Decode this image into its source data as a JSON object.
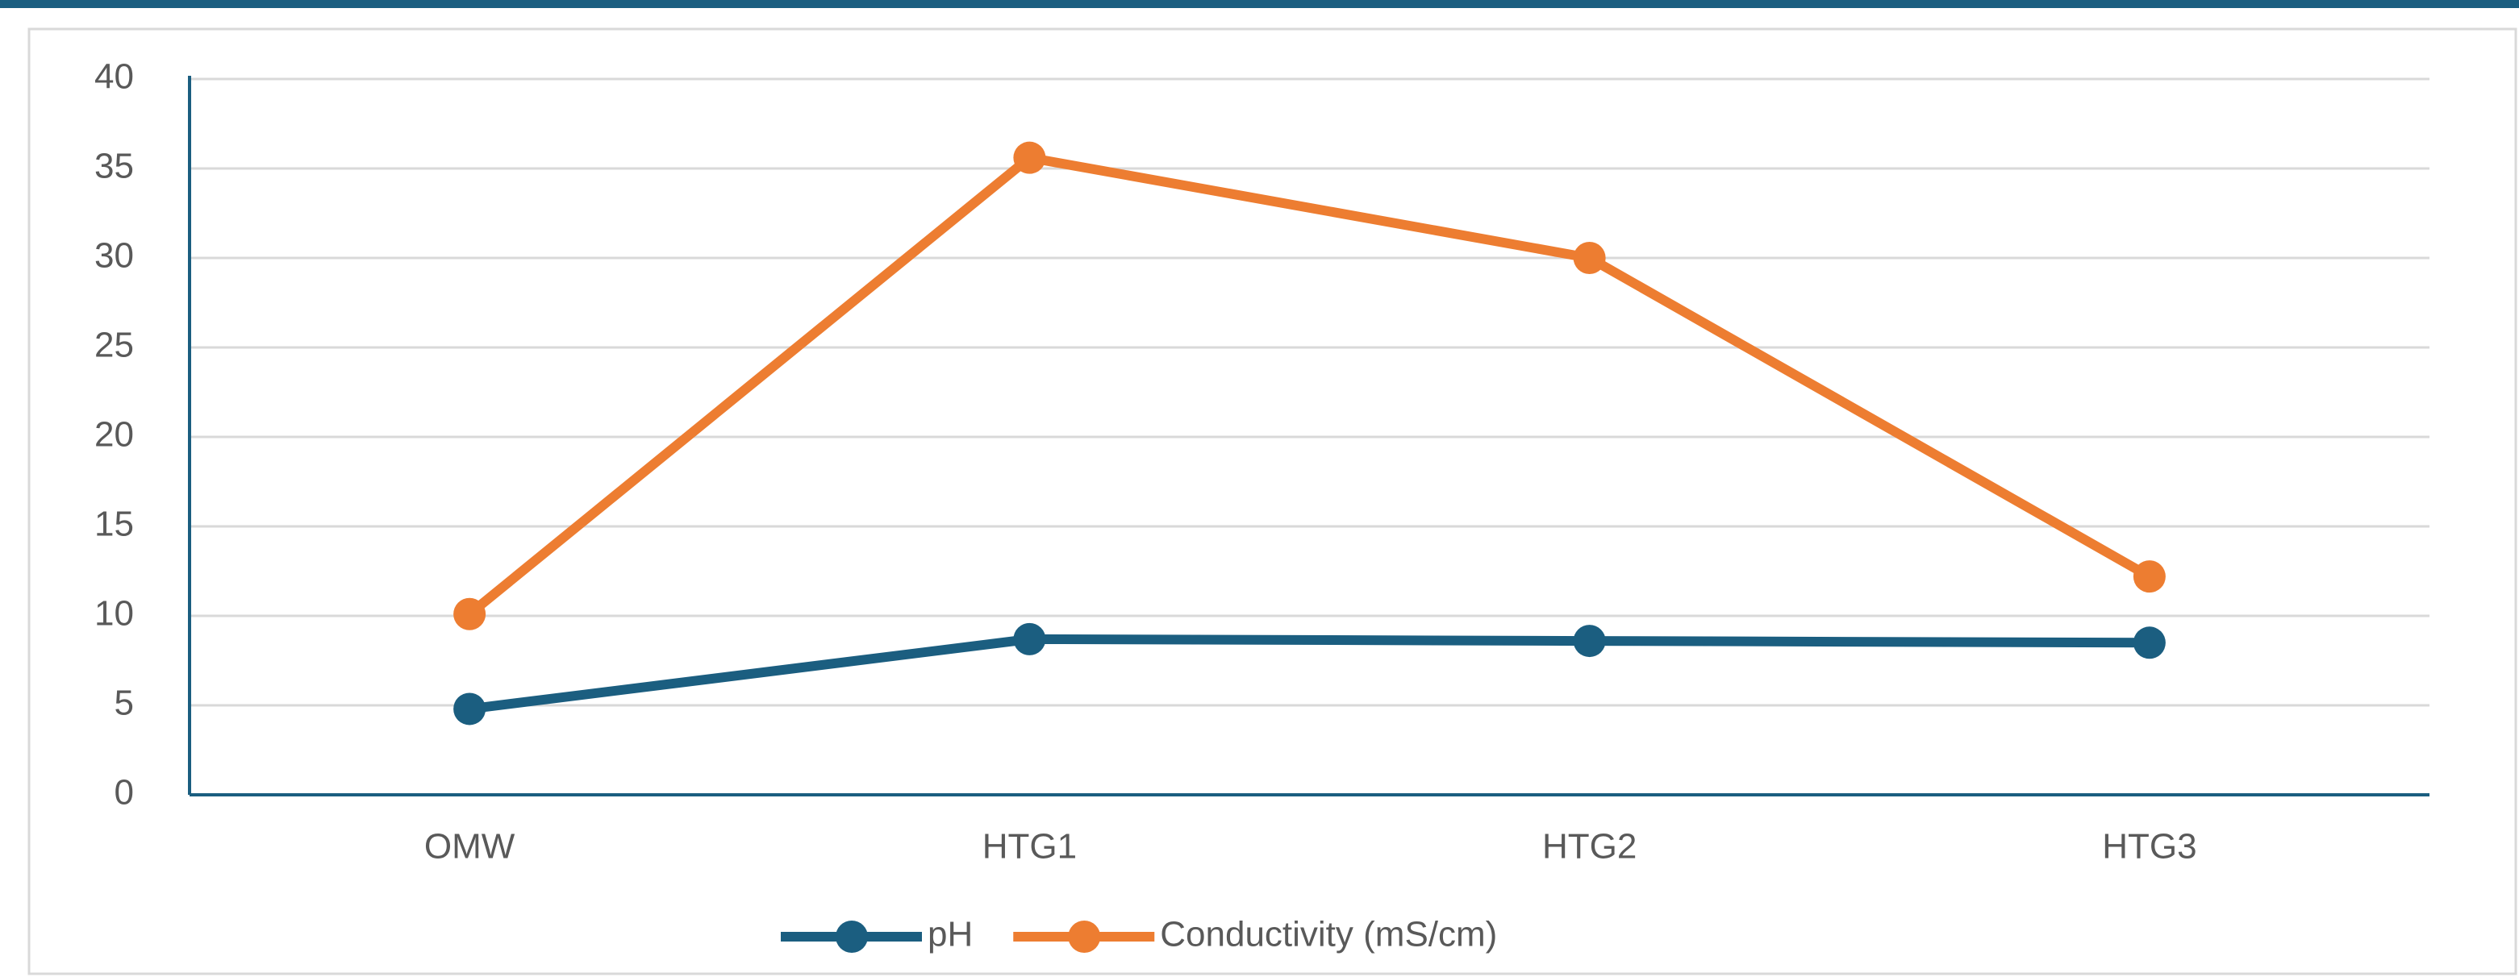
{
  "chart_data": {
    "type": "line",
    "categories": [
      "OMW",
      "HTG1",
      "HTG2",
      "HTG3"
    ],
    "series": [
      {
        "name": "pH",
        "color": "#1b5e80",
        "values": [
          4.8,
          8.7,
          8.6,
          8.5
        ]
      },
      {
        "name": "Conductivity (mS/cm)",
        "color": "#ed7d31",
        "values": [
          10.1,
          35.6,
          30.0,
          12.2
        ]
      }
    ],
    "ylim": [
      0,
      40
    ],
    "yticks": [
      0,
      5,
      10,
      15,
      20,
      25,
      30,
      35,
      40
    ],
    "grid": true,
    "legend": "bottom"
  }
}
